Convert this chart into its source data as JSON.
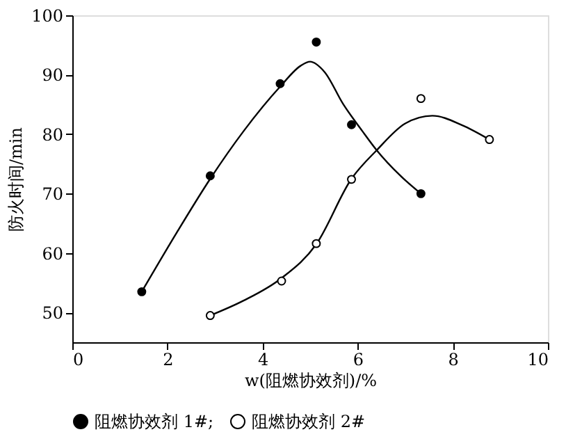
{
  "chart_data": {
    "type": "scatter",
    "xlabel": "w(阻燃协效剂)/%",
    "ylabel": "防火时间/min",
    "xlim": [
      0,
      10
    ],
    "xticks": [
      0,
      2,
      4,
      6,
      8,
      10
    ],
    "ylim": [
      45,
      100
    ],
    "yticks": [
      50,
      60,
      70,
      80,
      90,
      100
    ],
    "grid": false,
    "legend": "bottom",
    "marker": "circle",
    "series": [
      {
        "name": "阻燃协效剂 1#;",
        "color": "#000000",
        "x": [
          1.46,
          2.9,
          4.37,
          5.13,
          5.87,
          7.33
        ],
        "values": [
          53.5,
          73,
          88.5,
          95.5,
          81.6,
          70
        ]
      },
      {
        "name": "阻燃协效剂 2#",
        "color": "#ffffff",
        "x": [
          2.9,
          4.4,
          5.13,
          5.87,
          7.33,
          8.77
        ],
        "values": [
          49.5,
          55.3,
          61.6,
          72.4,
          86,
          79.1
        ]
      },
      {
        "type": "line",
        "marker": "none",
        "line_style": "solid",
        "color": "#000000",
        "x": [
          1.46,
          2.2,
          2.9,
          3.6,
          4.37,
          4.8,
          5.0,
          5.3,
          5.7,
          6.1,
          6.4,
          6.9,
          7.33
        ],
        "values": [
          53.5,
          63.5,
          72.5,
          80.5,
          88,
          91.5,
          92.2,
          90.5,
          85,
          80.5,
          77.3,
          73,
          70
        ]
      },
      {
        "type": "line",
        "marker": "none",
        "line_style": "solid",
        "color": "#000000",
        "x": [
          2.9,
          3.6,
          4.4,
          5.13,
          5.87,
          6.4,
          7.0,
          7.57,
          8.2,
          8.77
        ],
        "values": [
          49.5,
          52,
          55.8,
          61.5,
          72.5,
          77.3,
          81.8,
          83.1,
          81.5,
          79.1
        ]
      }
    ]
  }
}
